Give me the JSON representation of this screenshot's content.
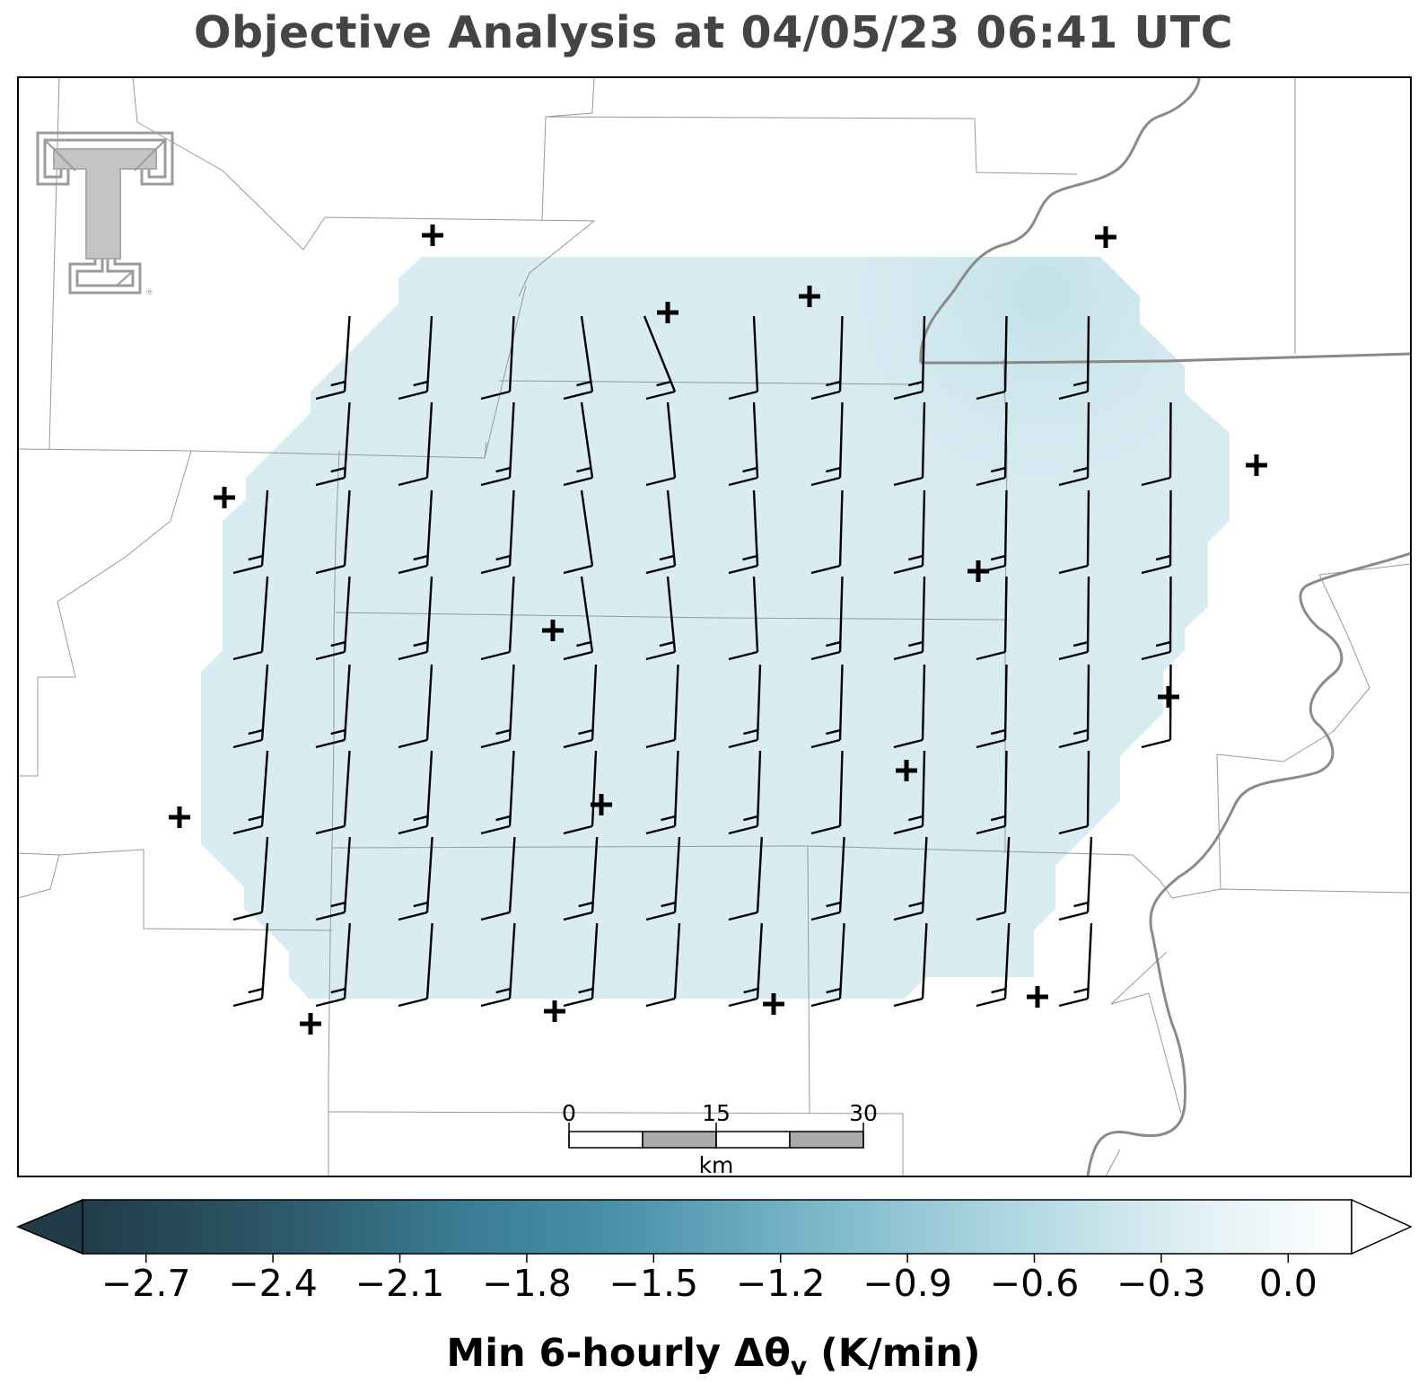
{
  "title": "Objective Analysis at 04/05/23 06:41 UTC",
  "logo": {
    "name": "texas-tech-double-t-logo",
    "mark": "®"
  },
  "colorbar": {
    "label_main": "Min 6-hourly Δθ",
    "label_sub": "v",
    "label_units": " (K/min)",
    "range": [
      -2.85,
      0.15
    ],
    "ticks": [
      "−2.7",
      "−2.4",
      "−2.1",
      "−1.8",
      "−1.5",
      "−1.2",
      "−0.9",
      "−0.6",
      "−0.3",
      "0.0"
    ],
    "tick_values": [
      -2.7,
      -2.4,
      -2.1,
      -1.8,
      -1.5,
      -1.2,
      -0.9,
      -0.6,
      -0.3,
      0.0
    ],
    "colormap": [
      "#203b47",
      "#2e5868",
      "#3f8aa2",
      "#6fb0c3",
      "#a7d3df",
      "#d6ebf1",
      "#ffffff"
    ],
    "extend": "both"
  },
  "scale_bar": {
    "labels": [
      "0",
      "15",
      "30"
    ],
    "units": "km"
  },
  "analysis_field": {
    "fill_color": "#d9ecf1",
    "max_color": "#c0e0e8",
    "value_range": [
      -0.65,
      -0.45
    ]
  },
  "colors": {
    "boundary": "#999999",
    "river": "#888888",
    "barb": "#000000",
    "station": "#000000"
  }
}
